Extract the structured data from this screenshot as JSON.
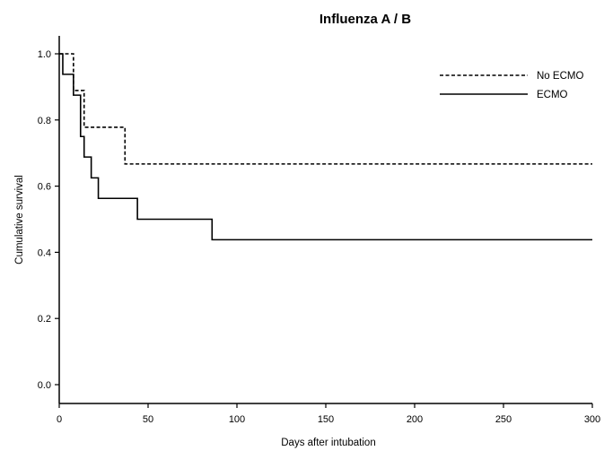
{
  "chart_data": {
    "type": "line",
    "subtype": "kaplan-meier-step",
    "title": "Influenza A / B",
    "xlabel": "Days after intubation",
    "ylabel": "Cumulative survival",
    "xlim": [
      0,
      300
    ],
    "ylim": [
      0,
      1.0
    ],
    "xticks": [
      "0",
      "50",
      "100",
      "150",
      "200",
      "250",
      "300"
    ],
    "yticks": [
      "0.0",
      "0.2",
      "0.4",
      "0.6",
      "0.8",
      "1.0"
    ],
    "legend_position": "top-right",
    "grid": false,
    "series": [
      {
        "name": "No ECMO",
        "style": "dashed",
        "color": "#000000",
        "x": [
          0,
          8,
          14,
          37,
          300
        ],
        "y": [
          1.0,
          0.889,
          0.778,
          0.667,
          0.667
        ]
      },
      {
        "name": "ECMO",
        "style": "solid",
        "color": "#000000",
        "x": [
          0,
          2,
          8,
          12,
          14,
          18,
          22,
          44,
          86,
          300
        ],
        "y": [
          1.0,
          0.938,
          0.875,
          0.75,
          0.688,
          0.625,
          0.563,
          0.5,
          0.438,
          0.438
        ]
      }
    ]
  }
}
